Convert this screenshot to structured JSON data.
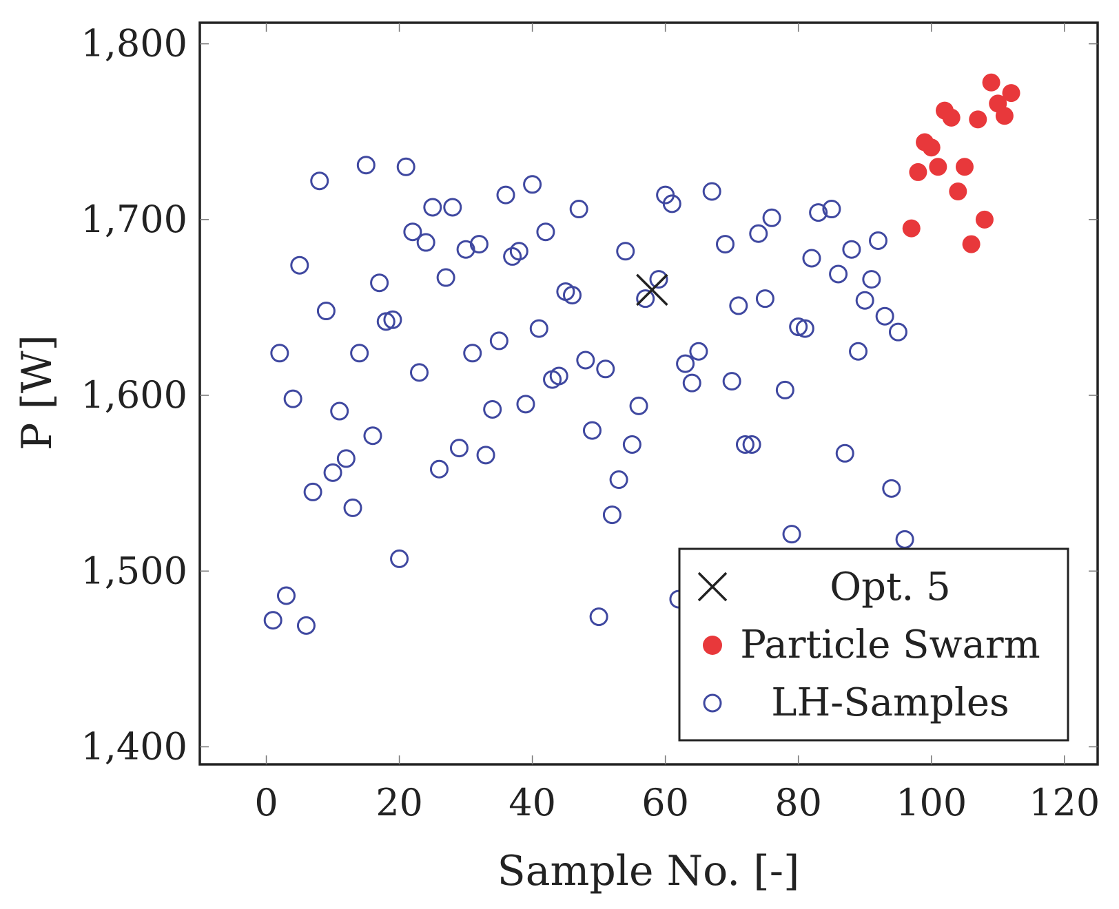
{
  "chart_data": {
    "type": "scatter",
    "xlabel": "Sample No. [-]",
    "ylabel": "P [W]",
    "xlim": [
      -10,
      125
    ],
    "ylim": [
      1390,
      1812
    ],
    "x_ticks": [
      0,
      20,
      40,
      60,
      80,
      100,
      120
    ],
    "x_tick_labels": [
      "0",
      "20",
      "40",
      "60",
      "80",
      "100",
      "120"
    ],
    "y_ticks": [
      1400,
      1500,
      1600,
      1700,
      1800
    ],
    "y_tick_labels": [
      "1,400",
      "1,500",
      "1,600",
      "1,700",
      "1,800"
    ],
    "grid": false,
    "legend_position": "bottom-right",
    "series": [
      {
        "name": "Opt. 5",
        "marker": "cross",
        "color": "#222222",
        "points": [
          [
            58,
            1660
          ]
        ]
      },
      {
        "name": "Particle Swarm",
        "marker": "filled-circle",
        "color": "#e8383b",
        "points": [
          [
            97,
            1695
          ],
          [
            98,
            1727
          ],
          [
            99,
            1744
          ],
          [
            100,
            1741
          ],
          [
            101,
            1730
          ],
          [
            102,
            1762
          ],
          [
            103,
            1758
          ],
          [
            104,
            1716
          ],
          [
            105,
            1730
          ],
          [
            106,
            1686
          ],
          [
            107,
            1757
          ],
          [
            108,
            1700
          ],
          [
            109,
            1778
          ],
          [
            110,
            1766
          ],
          [
            111,
            1759
          ],
          [
            112,
            1772
          ]
        ]
      },
      {
        "name": "LH-Samples",
        "marker": "open-circle",
        "color": "#3f48a0",
        "points": [
          [
            1,
            1472
          ],
          [
            2,
            1624
          ],
          [
            3,
            1486
          ],
          [
            4,
            1598
          ],
          [
            5,
            1674
          ],
          [
            6,
            1469
          ],
          [
            7,
            1545
          ],
          [
            8,
            1722
          ],
          [
            9,
            1648
          ],
          [
            10,
            1556
          ],
          [
            11,
            1591
          ],
          [
            12,
            1564
          ],
          [
            13,
            1536
          ],
          [
            14,
            1624
          ],
          [
            15,
            1731
          ],
          [
            16,
            1577
          ],
          [
            17,
            1664
          ],
          [
            18,
            1642
          ],
          [
            19,
            1643
          ],
          [
            20,
            1507
          ],
          [
            21,
            1730
          ],
          [
            22,
            1693
          ],
          [
            23,
            1613
          ],
          [
            24,
            1687
          ],
          [
            25,
            1707
          ],
          [
            26,
            1558
          ],
          [
            27,
            1667
          ],
          [
            28,
            1707
          ],
          [
            29,
            1570
          ],
          [
            30,
            1683
          ],
          [
            31,
            1624
          ],
          [
            32,
            1686
          ],
          [
            33,
            1566
          ],
          [
            34,
            1592
          ],
          [
            35,
            1631
          ],
          [
            36,
            1714
          ],
          [
            37,
            1679
          ],
          [
            38,
            1682
          ],
          [
            39,
            1595
          ],
          [
            40,
            1720
          ],
          [
            41,
            1638
          ],
          [
            42,
            1693
          ],
          [
            43,
            1609
          ],
          [
            44,
            1611
          ],
          [
            45,
            1659
          ],
          [
            46,
            1657
          ],
          [
            47,
            1706
          ],
          [
            48,
            1620
          ],
          [
            49,
            1580
          ],
          [
            50,
            1474
          ],
          [
            51,
            1615
          ],
          [
            52,
            1532
          ],
          [
            53,
            1552
          ],
          [
            54,
            1682
          ],
          [
            55,
            1572
          ],
          [
            56,
            1594
          ],
          [
            57,
            1655
          ],
          [
            59,
            1666
          ],
          [
            60,
            1714
          ],
          [
            61,
            1709
          ],
          [
            62,
            1484
          ],
          [
            63,
            1618
          ],
          [
            64,
            1607
          ],
          [
            65,
            1625
          ],
          [
            67,
            1716
          ],
          [
            69,
            1686
          ],
          [
            70,
            1608
          ],
          [
            71,
            1651
          ],
          [
            72,
            1572
          ],
          [
            73,
            1572
          ],
          [
            74,
            1692
          ],
          [
            75,
            1655
          ],
          [
            76,
            1701
          ],
          [
            78,
            1603
          ],
          [
            79,
            1521
          ],
          [
            80,
            1639
          ],
          [
            81,
            1638
          ],
          [
            82,
            1678
          ],
          [
            83,
            1704
          ],
          [
            85,
            1706
          ],
          [
            86,
            1669
          ],
          [
            87,
            1567
          ],
          [
            88,
            1683
          ],
          [
            89,
            1625
          ],
          [
            90,
            1654
          ],
          [
            91,
            1666
          ],
          [
            92,
            1688
          ],
          [
            93,
            1645
          ],
          [
            94,
            1547
          ],
          [
            95,
            1636
          ],
          [
            96,
            1518
          ]
        ]
      }
    ]
  }
}
